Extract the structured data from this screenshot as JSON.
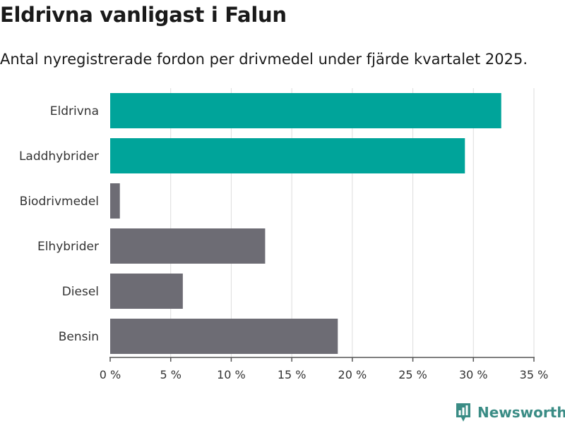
{
  "title": "Eldrivna vanligast i Falun",
  "subtitle": "Antal nyregistrerade fordon per drivmedel under fjärde kvartalet 2025.",
  "logo": {
    "text": "Newsworthy",
    "icon": "bar-chart-pin-icon"
  },
  "colors": {
    "highlight": "#00a49a",
    "default": "#6d6c74",
    "grid": "#dddddd",
    "logo": "#3a8c85"
  },
  "chart_data": {
    "type": "bar",
    "orientation": "horizontal",
    "categories": [
      "Eldrivna",
      "Laddhybrider",
      "Biodrivmedel",
      "Elhybrider",
      "Diesel",
      "Bensin"
    ],
    "values": [
      32.3,
      29.3,
      0.8,
      12.8,
      6.0,
      18.8
    ],
    "highlighted": [
      true,
      true,
      false,
      false,
      false,
      false
    ],
    "xlim": [
      0,
      35
    ],
    "xticks": [
      0,
      5,
      10,
      15,
      20,
      25,
      30,
      35
    ],
    "xtick_labels": [
      "0 %",
      "5 %",
      "10 %",
      "15 %",
      "20 %",
      "25 %",
      "30 %",
      "35 %"
    ],
    "grid": true,
    "legend": "none"
  }
}
